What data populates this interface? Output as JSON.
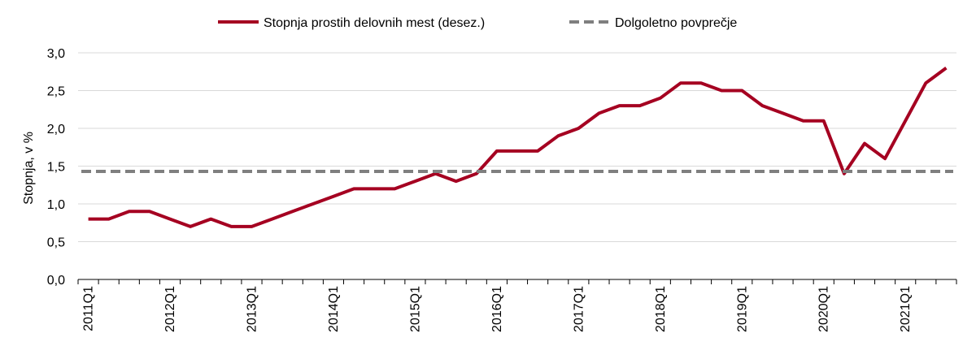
{
  "chart_data": {
    "type": "line",
    "ylabel": "Stopnja, v %",
    "ylim": [
      0,
      3
    ],
    "yticks": [
      "0,0",
      "0,5",
      "1,0",
      "1,5",
      "2,0",
      "2,5",
      "3,0"
    ],
    "ytick_values": [
      0,
      0.5,
      1.0,
      1.5,
      2.0,
      2.5,
      3.0
    ],
    "grid": "horizontal",
    "legend_position": "top-center",
    "x": [
      "2011Q1",
      "2011Q2",
      "2011Q3",
      "2011Q4",
      "2012Q1",
      "2012Q2",
      "2012Q3",
      "2012Q4",
      "2013Q1",
      "2013Q2",
      "2013Q3",
      "2013Q4",
      "2014Q1",
      "2014Q2",
      "2014Q3",
      "2014Q4",
      "2015Q1",
      "2015Q2",
      "2015Q3",
      "2015Q4",
      "2016Q1",
      "2016Q2",
      "2016Q3",
      "2016Q4",
      "2017Q1",
      "2017Q2",
      "2017Q3",
      "2017Q4",
      "2018Q1",
      "2018Q2",
      "2018Q3",
      "2018Q4",
      "2019Q1",
      "2019Q2",
      "2019Q3",
      "2019Q4",
      "2020Q1",
      "2020Q2",
      "2020Q3",
      "2020Q4",
      "2021Q1",
      "2021Q2",
      "2021Q3"
    ],
    "xtick_labels": [
      "2011Q1",
      "2012Q1",
      "2013Q1",
      "2014Q1",
      "2015Q1",
      "2016Q1",
      "2017Q1",
      "2018Q1",
      "2019Q1",
      "2020Q1",
      "2021Q1"
    ],
    "series": [
      {
        "name": "Stopnja prostih delovnih mest (desez.)",
        "color": "#a50021",
        "style": "solid",
        "values": [
          0.8,
          0.8,
          0.9,
          0.9,
          0.8,
          0.7,
          0.8,
          0.7,
          0.7,
          0.8,
          0.9,
          1.0,
          1.1,
          1.2,
          1.2,
          1.2,
          1.3,
          1.4,
          1.3,
          1.4,
          1.7,
          1.7,
          1.7,
          1.9,
          2.0,
          2.2,
          2.3,
          2.3,
          2.4,
          2.6,
          2.6,
          2.5,
          2.5,
          2.3,
          2.2,
          2.1,
          2.1,
          1.4,
          1.8,
          1.6,
          2.1,
          2.6,
          2.8
        ]
      },
      {
        "name": "Dolgoletno povprečje",
        "color": "#7f7f7f",
        "style": "dashed",
        "values": [
          1.43,
          1.43,
          1.43,
          1.43,
          1.43,
          1.43,
          1.43,
          1.43,
          1.43,
          1.43,
          1.43,
          1.43,
          1.43,
          1.43,
          1.43,
          1.43,
          1.43,
          1.43,
          1.43,
          1.43,
          1.43,
          1.43,
          1.43,
          1.43,
          1.43,
          1.43,
          1.43,
          1.43,
          1.43,
          1.43,
          1.43,
          1.43,
          1.43,
          1.43,
          1.43,
          1.43,
          1.43,
          1.43,
          1.43,
          1.43,
          1.43,
          1.43,
          1.43
        ]
      }
    ],
    "colors": {
      "gridline": "#d9d9d9",
      "axis": "#000000"
    }
  }
}
